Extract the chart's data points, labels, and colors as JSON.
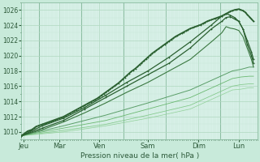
{
  "xlabel": "Pression niveau de la mer( hPa )",
  "background_color": "#c8eada",
  "plot_bg_color": "#d8f0e8",
  "grid_major_color": "#b0d8c0",
  "grid_minor_color": "#c8e8d8",
  "x_labels": [
    "Jeu",
    "Mar",
    "Ven",
    "Sam",
    "Dim",
    "Lun"
  ],
  "ylim": [
    1009.0,
    1027.0
  ],
  "xlim": [
    0.0,
    5.6
  ],
  "yticks": [
    1010,
    1012,
    1014,
    1016,
    1018,
    1020,
    1022,
    1024,
    1026
  ],
  "xtick_positions": [
    0.05,
    0.9,
    1.85,
    3.0,
    4.2,
    5.15
  ],
  "day_dividers": [
    0.42,
    1.42,
    2.42,
    3.42,
    4.72
  ],
  "dark_green": "#2a6030",
  "mid_green": "#3a7840",
  "light_green": "#70b878",
  "lighter_green": "#90cc98",
  "lines": [
    {
      "x": [
        0.0,
        0.05,
        0.1,
        0.15,
        0.2,
        0.25,
        0.3,
        0.35,
        0.4,
        0.45,
        0.5,
        0.55,
        0.6,
        0.65,
        0.7,
        0.75,
        0.8,
        0.85,
        0.9,
        0.95,
        1.0,
        1.05,
        1.1,
        1.15,
        1.2,
        1.25,
        1.3,
        1.35,
        1.4,
        1.45,
        1.5,
        1.55,
        1.6,
        1.65,
        1.7,
        1.75,
        1.8,
        1.85,
        1.9,
        1.95,
        2.0,
        2.05,
        2.1,
        2.15,
        2.2,
        2.25,
        2.3,
        2.35,
        2.4,
        2.45,
        2.5,
        2.55,
        2.6,
        2.65,
        2.7,
        2.75,
        2.8,
        2.85,
        2.9,
        2.95,
        3.0,
        3.05,
        3.1,
        3.15,
        3.2,
        3.25,
        3.3,
        3.35,
        3.4,
        3.45,
        3.5,
        3.55,
        3.6,
        3.65,
        3.7,
        3.75,
        3.8,
        3.85,
        3.9,
        3.95,
        4.0,
        4.05,
        4.1,
        4.15,
        4.2,
        4.25,
        4.3,
        4.35,
        4.4,
        4.45,
        4.5,
        4.55,
        4.6,
        4.65,
        4.7,
        4.75,
        4.8,
        4.85,
        4.9,
        4.95,
        5.0,
        5.05,
        5.1,
        5.15,
        5.2,
        5.25,
        5.3,
        5.35,
        5.4,
        5.45,
        5.5
      ],
      "y": [
        1009.5,
        1009.7,
        1009.9,
        1010.1,
        1010.2,
        1010.3,
        1010.5,
        1010.7,
        1010.8,
        1010.9,
        1011.0,
        1011.1,
        1011.2,
        1011.3,
        1011.4,
        1011.5,
        1011.6,
        1011.7,
        1011.8,
        1011.9,
        1012.0,
        1012.15,
        1012.3,
        1012.45,
        1012.6,
        1012.75,
        1012.9,
        1013.05,
        1013.2,
        1013.35,
        1013.5,
        1013.65,
        1013.8,
        1013.95,
        1014.1,
        1014.25,
        1014.4,
        1014.6,
        1014.8,
        1015.0,
        1015.2,
        1015.4,
        1015.6,
        1015.8,
        1016.0,
        1016.2,
        1016.4,
        1016.65,
        1016.9,
        1017.15,
        1017.4,
        1017.65,
        1017.9,
        1018.1,
        1018.3,
        1018.55,
        1018.8,
        1019.05,
        1019.3,
        1019.55,
        1019.8,
        1020.05,
        1020.3,
        1020.5,
        1020.7,
        1020.9,
        1021.1,
        1021.3,
        1021.5,
        1021.7,
        1021.9,
        1022.1,
        1022.3,
        1022.5,
        1022.65,
        1022.8,
        1022.95,
        1023.1,
        1023.25,
        1023.4,
        1023.55,
        1023.65,
        1023.75,
        1023.85,
        1023.95,
        1024.05,
        1024.2,
        1024.35,
        1024.5,
        1024.6,
        1024.7,
        1024.8,
        1024.9,
        1025.0,
        1025.1,
        1025.2,
        1025.35,
        1025.5,
        1025.65,
        1025.8,
        1025.9,
        1026.0,
        1026.05,
        1026.1,
        1026.0,
        1025.9,
        1025.7,
        1025.4,
        1025.1,
        1024.8,
        1024.5
      ],
      "color": "#2a6030",
      "lw": 1.3,
      "marker": true
    },
    {
      "x": [
        0.0,
        0.5,
        1.0,
        1.5,
        2.0,
        2.5,
        3.0,
        3.5,
        4.0,
        4.5,
        4.75,
        4.85,
        4.95,
        5.05,
        5.15,
        5.25,
        5.35,
        5.45,
        5.5
      ],
      "y": [
        1009.5,
        1010.5,
        1011.5,
        1013.0,
        1014.5,
        1016.0,
        1017.5,
        1019.0,
        1021.0,
        1023.5,
        1024.5,
        1025.0,
        1025.1,
        1024.8,
        1024.5,
        1023.5,
        1022.0,
        1020.5,
        1019.5
      ],
      "color": "#2a6030",
      "lw": 0.9,
      "marker": true
    },
    {
      "x": [
        0.0,
        0.5,
        1.0,
        1.5,
        2.0,
        2.5,
        3.0,
        3.5,
        4.0,
        4.5,
        4.75,
        4.85,
        4.95,
        5.05,
        5.15,
        5.25,
        5.35,
        5.45,
        5.5
      ],
      "y": [
        1009.5,
        1010.8,
        1011.8,
        1013.2,
        1014.8,
        1016.5,
        1018.0,
        1019.8,
        1021.8,
        1024.0,
        1025.2,
        1025.5,
        1025.3,
        1025.0,
        1024.5,
        1023.5,
        1021.5,
        1020.0,
        1019.0
      ],
      "color": "#2a6030",
      "lw": 0.9,
      "marker": true
    },
    {
      "x": [
        0.0,
        0.5,
        1.0,
        1.5,
        2.0,
        2.5,
        3.0,
        3.5,
        4.0,
        4.5,
        4.75,
        4.85,
        4.95,
        5.05,
        5.15,
        5.25,
        5.35,
        5.45,
        5.5
      ],
      "y": [
        1009.5,
        1010.3,
        1011.3,
        1012.5,
        1013.8,
        1015.2,
        1016.5,
        1018.0,
        1019.5,
        1021.8,
        1023.0,
        1023.8,
        1023.6,
        1023.5,
        1023.3,
        1022.5,
        1021.0,
        1019.5,
        1018.5
      ],
      "color": "#3a7840",
      "lw": 0.8,
      "marker": false
    },
    {
      "x": [
        0.0,
        1.0,
        2.0,
        3.0,
        4.0,
        4.8,
        5.0,
        5.2,
        5.4,
        5.5
      ],
      "y": [
        1009.5,
        1010.8,
        1012.2,
        1013.8,
        1015.5,
        1017.5,
        1018.0,
        1018.2,
        1018.5,
        1018.5
      ],
      "color": "#5a9e68",
      "lw": 0.7,
      "marker": false
    },
    {
      "x": [
        0.0,
        1.0,
        2.0,
        3.0,
        4.0,
        4.8,
        5.0,
        5.2,
        5.4,
        5.5
      ],
      "y": [
        1009.5,
        1010.5,
        1011.5,
        1013.0,
        1014.5,
        1016.5,
        1017.0,
        1017.2,
        1017.3,
        1017.3
      ],
      "color": "#6ab870",
      "lw": 0.6,
      "marker": false
    },
    {
      "x": [
        0.0,
        1.0,
        2.0,
        3.0,
        4.0,
        4.8,
        5.0,
        5.2,
        5.4,
        5.5
      ],
      "y": [
        1009.5,
        1010.2,
        1011.0,
        1012.2,
        1013.5,
        1015.5,
        1016.0,
        1016.2,
        1016.3,
        1016.3
      ],
      "color": "#80c888",
      "lw": 0.55,
      "marker": false
    },
    {
      "x": [
        0.0,
        1.0,
        2.0,
        3.0,
        4.0,
        4.8,
        5.0,
        5.2,
        5.4,
        5.5
      ],
      "y": [
        1009.5,
        1010.0,
        1010.8,
        1011.8,
        1013.0,
        1015.0,
        1015.5,
        1015.6,
        1015.8,
        1015.8
      ],
      "color": "#90d098",
      "lw": 0.5,
      "marker": false
    }
  ]
}
